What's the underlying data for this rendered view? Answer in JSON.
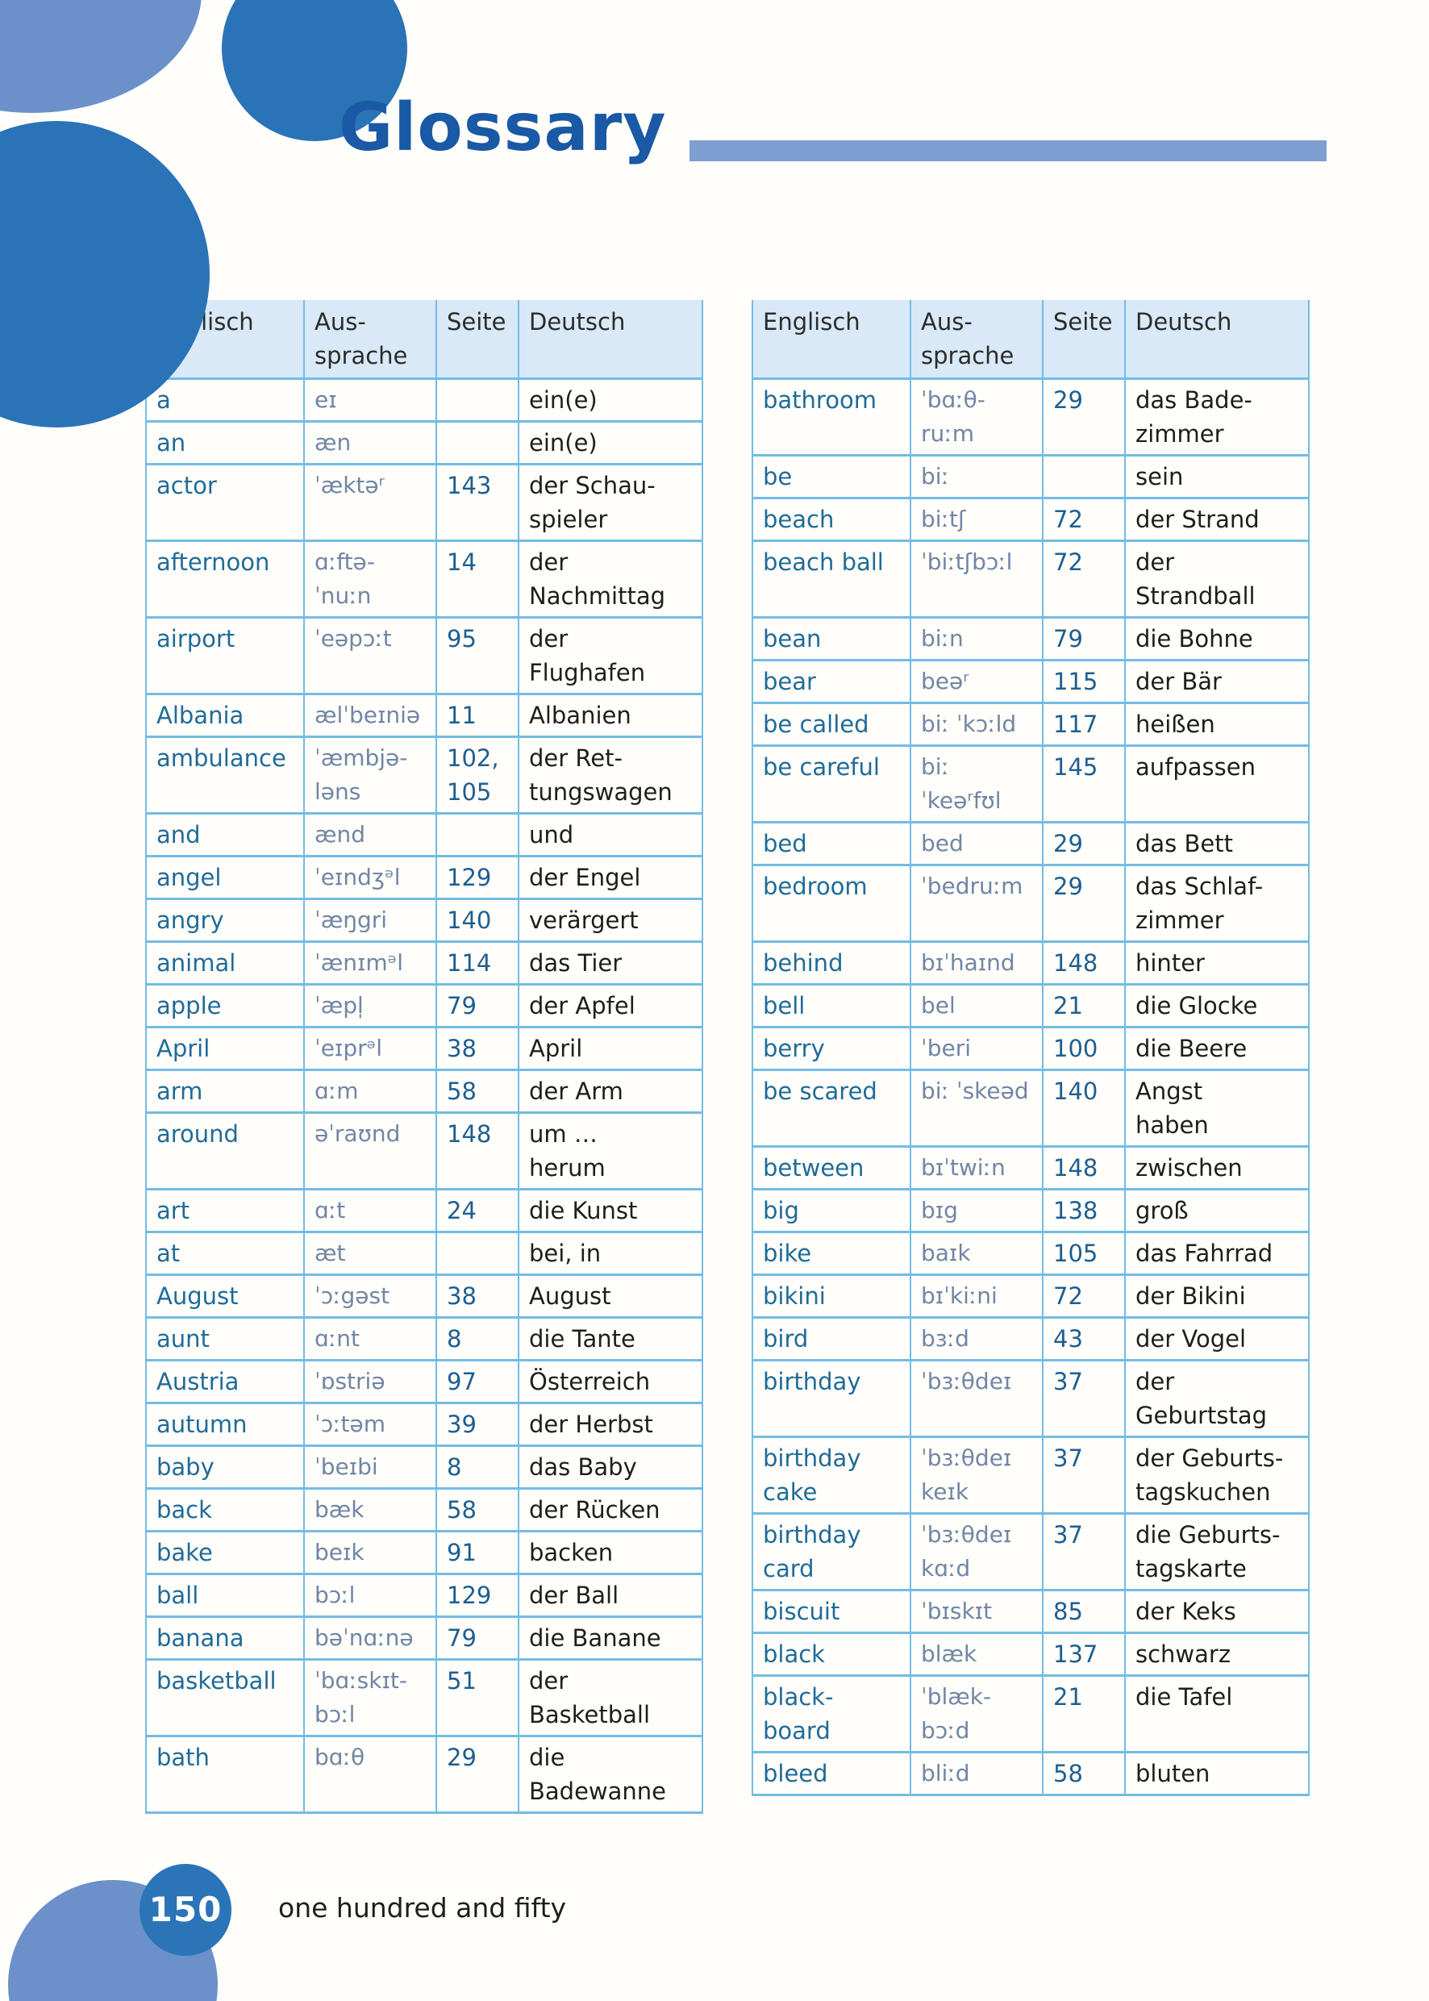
{
  "page": {
    "title": "Glossary",
    "footer_page_number": "150",
    "footer_page_text": "one hundred and fifty"
  },
  "headers": {
    "english": "Englisch",
    "pronunciation": "Aus-\nsprache",
    "page": "Seite",
    "german": "Deutsch"
  },
  "colors": {
    "title_blue": "#1959a6",
    "accent_bar": "#7f9ed1",
    "circle_dark": "#2b73b7",
    "circle_light": "#6c91ca",
    "table_line": "#72bce5",
    "header_bg": "#d9e9f7",
    "english_word": "#1f6b98",
    "pronunciation_text": "#7186a5",
    "page_number": "#1e5e90",
    "german_text": "#1e1e1c"
  },
  "left_table": {
    "rows": [
      {
        "en": "a",
        "pron": "eɪ",
        "page": "",
        "de": "ein(e)"
      },
      {
        "en": "an",
        "pron": "æn",
        "page": "",
        "de": "ein(e)"
      },
      {
        "en": "actor",
        "pron": "ˈæktəʳ",
        "page": "143",
        "de": "der Schau-\nspieler"
      },
      {
        "en": "afternoon",
        "pron": "ɑːftə-\nˈnuːn",
        "page": "14",
        "de": "der\nNachmittag"
      },
      {
        "en": "airport",
        "pron": "ˈeəpɔːt",
        "page": "95",
        "de": "der\nFlughafen"
      },
      {
        "en": "Albania",
        "pron": "ælˈbeɪniə",
        "page": "11",
        "de": "Albanien"
      },
      {
        "en": "ambulance",
        "pron": "ˈæmbjə-\nləns",
        "page": "102,\n105",
        "de": "der Ret-\ntungswagen"
      },
      {
        "en": "and",
        "pron": "ænd",
        "page": "",
        "de": "und"
      },
      {
        "en": "angel",
        "pron": "ˈeɪndʒᵊl",
        "page": "129",
        "de": "der Engel"
      },
      {
        "en": "angry",
        "pron": "ˈæŋgri",
        "page": "140",
        "de": "verärgert"
      },
      {
        "en": "animal",
        "pron": "ˈænɪmᵊl",
        "page": "114",
        "de": "das Tier"
      },
      {
        "en": "apple",
        "pron": "ˈæpl̩",
        "page": "79",
        "de": "der Apfel"
      },
      {
        "en": "April",
        "pron": "ˈeɪprᵊl",
        "page": "38",
        "de": "April"
      },
      {
        "en": "arm",
        "pron": "ɑːm",
        "page": "58",
        "de": "der Arm"
      },
      {
        "en": "around",
        "pron": "əˈraʊnd",
        "page": "148",
        "de": "um …\nherum"
      },
      {
        "en": "art",
        "pron": "ɑːt",
        "page": "24",
        "de": "die Kunst"
      },
      {
        "en": "at",
        "pron": "æt",
        "page": "",
        "de": "bei, in"
      },
      {
        "en": "August",
        "pron": "ˈɔːgəst",
        "page": "38",
        "de": "August"
      },
      {
        "en": "aunt",
        "pron": "ɑːnt",
        "page": "8",
        "de": "die Tante"
      },
      {
        "en": "Austria",
        "pron": "ˈɒstriə",
        "page": "97",
        "de": "Österreich"
      },
      {
        "en": "autumn",
        "pron": "ˈɔːtəm",
        "page": "39",
        "de": "der Herbst"
      },
      {
        "en": "baby",
        "pron": "ˈbeɪbi",
        "page": "8",
        "de": "das Baby"
      },
      {
        "en": "back",
        "pron": "bæk",
        "page": "58",
        "de": "der Rücken"
      },
      {
        "en": "bake",
        "pron": "beɪk",
        "page": "91",
        "de": "backen"
      },
      {
        "en": "ball",
        "pron": "bɔːl",
        "page": "129",
        "de": "der Ball"
      },
      {
        "en": "banana",
        "pron": "bəˈnɑːnə",
        "page": "79",
        "de": "die Banane"
      },
      {
        "en": "basketball",
        "pron": "ˈbɑːskɪt-\nbɔːl",
        "page": "51",
        "de": "der\nBasketball"
      },
      {
        "en": "bath",
        "pron": "bɑːθ",
        "page": "29",
        "de": "die\nBadewanne"
      }
    ]
  },
  "right_table": {
    "rows": [
      {
        "en": "bathroom",
        "pron": "ˈbɑːθ-\nruːm",
        "page": "29",
        "de": "das Bade-\nzimmer"
      },
      {
        "en": "be",
        "pron": "biː",
        "page": "",
        "de": "sein"
      },
      {
        "en": "beach",
        "pron": "biːtʃ",
        "page": "72",
        "de": "der Strand"
      },
      {
        "en": "beach ball",
        "pron": "ˈbiːtʃbɔːl",
        "page": "72",
        "de": "der\nStrandball"
      },
      {
        "en": "bean",
        "pron": "biːn",
        "page": "79",
        "de": "die Bohne"
      },
      {
        "en": "bear",
        "pron": "beəʳ",
        "page": "115",
        "de": "der Bär"
      },
      {
        "en": "be called",
        "pron": "biː ˈkɔːld",
        "page": "117",
        "de": "heißen"
      },
      {
        "en": "be careful",
        "pron": "biː\nˈkeəʳfʊl",
        "page": "145",
        "de": "aufpassen"
      },
      {
        "en": "bed",
        "pron": "bed",
        "page": "29",
        "de": "das Bett"
      },
      {
        "en": "bedroom",
        "pron": "ˈbedruːm",
        "page": "29",
        "de": "das Schlaf-\nzimmer"
      },
      {
        "en": "behind",
        "pron": "bɪˈhaɪnd",
        "page": "148",
        "de": "hinter"
      },
      {
        "en": "bell",
        "pron": "bel",
        "page": "21",
        "de": "die Glocke"
      },
      {
        "en": "berry",
        "pron": "ˈberi",
        "page": "100",
        "de": "die Beere"
      },
      {
        "en": "be scared",
        "pron": "biː ˈskeəd",
        "page": "140",
        "de": "Angst\nhaben"
      },
      {
        "en": "between",
        "pron": "bɪˈtwiːn",
        "page": "148",
        "de": "zwischen"
      },
      {
        "en": "big",
        "pron": "bɪg",
        "page": "138",
        "de": "groß"
      },
      {
        "en": "bike",
        "pron": "baɪk",
        "page": "105",
        "de": "das Fahrrad"
      },
      {
        "en": "bikini",
        "pron": "bɪˈkiːni",
        "page": "72",
        "de": "der Bikini"
      },
      {
        "en": "bird",
        "pron": "bɜːd",
        "page": "43",
        "de": "der Vogel"
      },
      {
        "en": "birthday",
        "pron": "ˈbɜːθdeɪ",
        "page": "37",
        "de": "der\nGeburtstag"
      },
      {
        "en": "birthday\ncake",
        "pron": "ˈbɜːθdeɪ\nkeɪk",
        "page": "37",
        "de": "der Geburts-\ntagskuchen"
      },
      {
        "en": "birthday\ncard",
        "pron": "ˈbɜːθdeɪ\nkɑːd",
        "page": "37",
        "de": "die Geburts-\ntagskarte"
      },
      {
        "en": "biscuit",
        "pron": "ˈbɪskɪt",
        "page": "85",
        "de": "der Keks"
      },
      {
        "en": "black",
        "pron": "blæk",
        "page": "137",
        "de": "schwarz"
      },
      {
        "en": "black-\nboard",
        "pron": "ˈblæk-\nbɔːd",
        "page": "21",
        "de": "die Tafel"
      },
      {
        "en": "bleed",
        "pron": "bliːd",
        "page": "58",
        "de": "bluten"
      }
    ]
  }
}
